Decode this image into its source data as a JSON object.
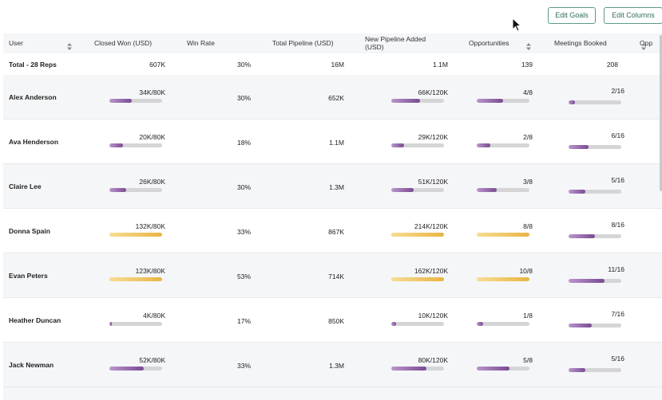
{
  "toolbar": {
    "edit_goals": "Edit Goals",
    "edit_columns": "Edit Columns"
  },
  "table": {
    "headers": [
      "User",
      "Closed Won (USD)",
      "Win Rate",
      "Total Pipeline (USD)",
      "New Pipeline Added (USD)",
      "Opportunities",
      "Meetings Booked",
      "Opp"
    ],
    "total": {
      "user": "Total - 28 Reps",
      "closed_won": "607K",
      "win_rate": "30%",
      "total_pipeline": "16M",
      "new_pipeline": "1.1M",
      "opportunities": "139",
      "meetings": "208"
    },
    "rows": [
      {
        "user": "Alex Anderson",
        "closed_won": {
          "label": "34K/80K",
          "value": 34,
          "goal": 80
        },
        "win_rate": "30%",
        "total_pipeline": "652K",
        "new_pipeline": {
          "label": "66K/120K",
          "value": 66,
          "goal": 120
        },
        "opportunities": {
          "label": "4/8",
          "value": 4,
          "goal": 8
        },
        "meetings": {
          "label": "2/16",
          "value": 2,
          "goal": 16
        }
      },
      {
        "user": "Ava Henderson",
        "closed_won": {
          "label": "20K/80K",
          "value": 20,
          "goal": 80
        },
        "win_rate": "18%",
        "total_pipeline": "1.1M",
        "new_pipeline": {
          "label": "29K/120K",
          "value": 29,
          "goal": 120
        },
        "opportunities": {
          "label": "2/8",
          "value": 2,
          "goal": 8
        },
        "meetings": {
          "label": "6/16",
          "value": 6,
          "goal": 16
        }
      },
      {
        "user": "Claire Lee",
        "closed_won": {
          "label": "26K/80K",
          "value": 26,
          "goal": 80
        },
        "win_rate": "30%",
        "total_pipeline": "1.3M",
        "new_pipeline": {
          "label": "51K/120K",
          "value": 51,
          "goal": 120
        },
        "opportunities": {
          "label": "3/8",
          "value": 3,
          "goal": 8
        },
        "meetings": {
          "label": "5/16",
          "value": 5,
          "goal": 16
        }
      },
      {
        "user": "Donna Spain",
        "closed_won": {
          "label": "132K/80K",
          "value": 132,
          "goal": 80
        },
        "win_rate": "33%",
        "total_pipeline": "867K",
        "new_pipeline": {
          "label": "214K/120K",
          "value": 214,
          "goal": 120
        },
        "opportunities": {
          "label": "8/8",
          "value": 8,
          "goal": 8
        },
        "meetings": {
          "label": "8/16",
          "value": 8,
          "goal": 16
        }
      },
      {
        "user": "Evan Peters",
        "closed_won": {
          "label": "123K/80K",
          "value": 123,
          "goal": 80
        },
        "win_rate": "53%",
        "total_pipeline": "714K",
        "new_pipeline": {
          "label": "162K/120K",
          "value": 162,
          "goal": 120
        },
        "opportunities": {
          "label": "10/8",
          "value": 10,
          "goal": 8
        },
        "meetings": {
          "label": "11/16",
          "value": 11,
          "goal": 16
        }
      },
      {
        "user": "Heather Duncan",
        "closed_won": {
          "label": "4K/80K",
          "value": 4,
          "goal": 80
        },
        "win_rate": "17%",
        "total_pipeline": "850K",
        "new_pipeline": {
          "label": "10K/120K",
          "value": 10,
          "goal": 120
        },
        "opportunities": {
          "label": "1/8",
          "value": 1,
          "goal": 8
        },
        "meetings": {
          "label": "7/16",
          "value": 7,
          "goal": 16
        }
      },
      {
        "user": "Jack Newman",
        "closed_won": {
          "label": "52K/80K",
          "value": 52,
          "goal": 80
        },
        "win_rate": "33%",
        "total_pipeline": "1.3M",
        "new_pipeline": {
          "label": "80K/120K",
          "value": 80,
          "goal": 120
        },
        "opportunities": {
          "label": "5/8",
          "value": 5,
          "goal": 8
        },
        "meetings": {
          "label": "5/16",
          "value": 5,
          "goal": 16
        }
      }
    ]
  }
}
